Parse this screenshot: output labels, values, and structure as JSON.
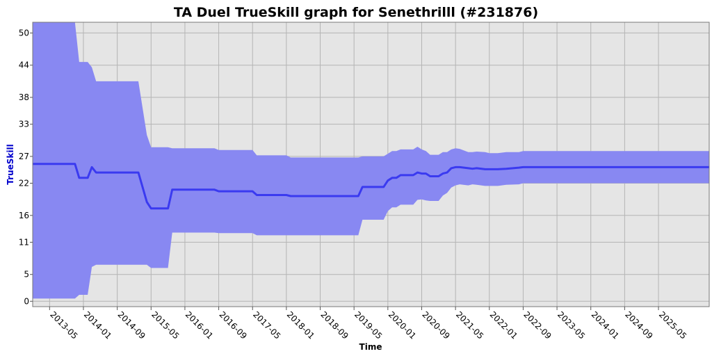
{
  "chart_data": {
    "type": "area",
    "title": "TA Duel TrueSkill graph for Senethrilll (#231876)",
    "xlabel": "Time",
    "ylabel": "TrueSkill",
    "ylim": [
      -1,
      52
    ],
    "xlim": [
      "2013-01",
      "2026-05"
    ],
    "grid": true,
    "legend": "none",
    "y_ticks": [
      0,
      5,
      11,
      16,
      22,
      27,
      33,
      38,
      44,
      50
    ],
    "x_ticks": [
      "2013-05",
      "2014-01",
      "2014-09",
      "2015-05",
      "2016-01",
      "2016-09",
      "2017-05",
      "2018-01",
      "2018-09",
      "2019-05",
      "2020-01",
      "2020-09",
      "2021-05",
      "2022-01",
      "2022-09",
      "2023-05",
      "2024-01",
      "2024-09",
      "2025-05"
    ],
    "colors": {
      "band": "#8888f2",
      "line": "#3a3af0",
      "plot_bg": "#e5e5e5",
      "grid": "#b4b4b4",
      "ylabel": "#0000cc"
    },
    "series": [
      {
        "x": [
          "2013-01",
          "2013-11",
          "2013-12",
          "2014-02",
          "2014-03",
          "2014-04",
          "2015-02",
          "2015-04",
          "2015-05",
          "2015-07",
          "2015-09",
          "2015-10",
          "2016-08",
          "2016-09",
          "2017-05",
          "2017-06",
          "2018-01",
          "2018-02",
          "2019-06",
          "2019-07",
          "2019-12",
          "2020-01",
          "2020-02",
          "2020-03",
          "2020-04",
          "2020-07",
          "2020-08",
          "2020-09",
          "2020-10",
          "2020-11",
          "2021-01",
          "2021-02",
          "2021-03",
          "2021-04",
          "2021-05",
          "2021-06",
          "2021-08",
          "2021-09",
          "2021-10",
          "2021-12",
          "2022-01",
          "2022-03",
          "2022-05",
          "2022-08",
          "2022-09",
          "2022-10",
          "2023-01",
          "2026-05"
        ],
        "mean": [
          25.6,
          25.6,
          23.0,
          23.0,
          25.0,
          24.0,
          24.0,
          18.5,
          17.3,
          17.3,
          17.3,
          20.8,
          20.8,
          20.5,
          20.5,
          19.8,
          19.8,
          19.6,
          19.6,
          21.3,
          21.3,
          22.5,
          23.0,
          23.0,
          23.5,
          23.5,
          24.0,
          23.8,
          23.8,
          23.3,
          23.3,
          23.8,
          24.0,
          24.8,
          25.0,
          25.0,
          24.8,
          24.7,
          24.8,
          24.6,
          24.6,
          24.6,
          24.7,
          24.9,
          25.0,
          25.0,
          25.0,
          25.0
        ],
        "upper": [
          52,
          52,
          44.6,
          44.6,
          43.6,
          41.0,
          41.0,
          31.0,
          28.7,
          28.7,
          28.7,
          28.5,
          28.5,
          28.2,
          28.2,
          27.2,
          27.2,
          26.8,
          26.8,
          27.0,
          27.0,
          27.5,
          28.0,
          28.0,
          28.3,
          28.3,
          28.8,
          28.3,
          28.0,
          27.3,
          27.3,
          27.8,
          27.8,
          28.3,
          28.5,
          28.4,
          27.8,
          27.8,
          27.9,
          27.8,
          27.6,
          27.6,
          27.8,
          27.8,
          28.0,
          28.0,
          28.0,
          28.0
        ],
        "lower": [
          0.5,
          0.5,
          1.2,
          1.2,
          6.4,
          6.8,
          6.8,
          6.8,
          6.2,
          6.2,
          6.2,
          12.8,
          12.8,
          12.7,
          12.7,
          12.3,
          12.3,
          12.3,
          12.3,
          15.2,
          15.2,
          16.8,
          17.5,
          17.5,
          18.0,
          18.0,
          18.9,
          19.0,
          18.8,
          18.7,
          18.7,
          19.7,
          20.2,
          21.2,
          21.6,
          21.8,
          21.6,
          21.8,
          21.7,
          21.5,
          21.5,
          21.5,
          21.7,
          21.8,
          22.0,
          22.0,
          22.0,
          22.0
        ]
      }
    ]
  }
}
